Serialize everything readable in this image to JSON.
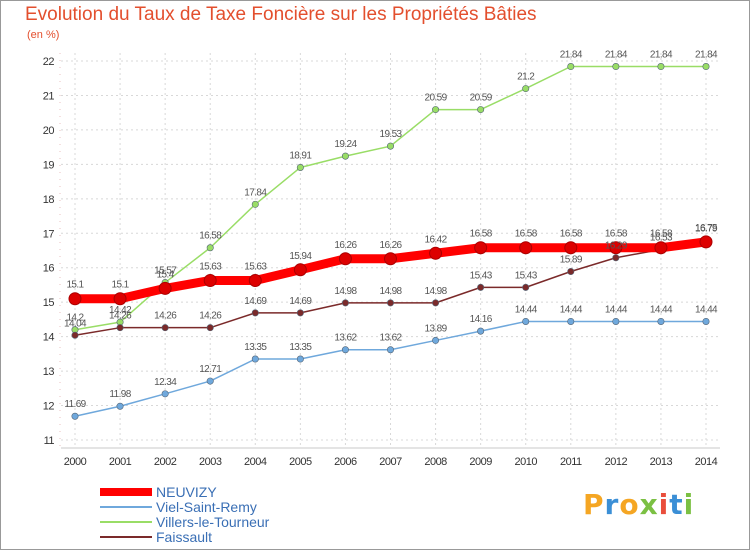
{
  "chart_data": {
    "type": "line",
    "title": "Evolution du Taux de Taxe Foncière sur les Propriétés Bâties",
    "unit_label": "(en %)",
    "xlabel": "",
    "ylabel": "(en %)",
    "categories": [
      "2000",
      "2001",
      "2002",
      "2003",
      "2004",
      "2005",
      "2006",
      "2007",
      "2008",
      "2009",
      "2010",
      "2011",
      "2012",
      "2013",
      "2014"
    ],
    "ylim": [
      11,
      22
    ],
    "yticks": [
      "11",
      "12",
      "13",
      "14",
      "15",
      "16",
      "17",
      "18",
      "19",
      "20",
      "21",
      "22"
    ],
    "grid": true,
    "legend_position": "bottom-left",
    "series": [
      {
        "name": "NEUVIZY",
        "color": "#ff0000",
        "values": [
          15.1,
          15.1,
          15.4,
          15.63,
          15.63,
          15.94,
          16.26,
          16.26,
          16.42,
          16.58,
          16.58,
          16.58,
          16.58,
          16.58,
          16.75
        ],
        "labels": [
          "15.1",
          "15.1",
          "15.4",
          "15.63",
          "15.63",
          "15.94",
          "16.26",
          "16.26",
          "16.42",
          "16.58",
          "16.58",
          "16.58",
          "16.58",
          "16.58",
          "16.75"
        ]
      },
      {
        "name": "Viel-Saint-Remy",
        "color": "#6fa8dc",
        "values": [
          11.69,
          11.98,
          12.34,
          12.71,
          13.35,
          13.35,
          13.62,
          13.62,
          13.89,
          14.16,
          14.44,
          14.44,
          14.44,
          14.44,
          14.44
        ],
        "labels": [
          "11.69",
          "11.98",
          "12.34",
          "12.71",
          "13.35",
          "13.35",
          "13.62",
          "13.62",
          "13.89",
          "14.16",
          "14.44",
          "14.44",
          "14.44",
          "14.44",
          "14.44"
        ]
      },
      {
        "name": "Villers-le-Tourneur",
        "color": "#99dd66",
        "values": [
          14.2,
          14.42,
          15.57,
          16.58,
          17.84,
          18.91,
          19.24,
          19.53,
          20.59,
          20.59,
          21.2,
          21.84,
          21.84,
          21.84,
          21.84
        ],
        "labels": [
          "14.2",
          "14.42",
          "15.57",
          "16.58",
          "17.84",
          "18.91",
          "19.24",
          "19.53",
          "20.59",
          "20.59",
          "21.2",
          "21.84",
          "21.84",
          "21.84",
          "21.84"
        ]
      },
      {
        "name": "Faissault",
        "color": "#7b2a2a",
        "values": [
          14.04,
          14.26,
          14.26,
          14.26,
          14.69,
          14.69,
          14.98,
          14.98,
          14.98,
          15.43,
          15.43,
          15.89,
          16.29,
          16.53,
          16.79
        ],
        "labels": [
          "14.04",
          "14.26",
          "14.26",
          "14.26",
          "14.69",
          "14.69",
          "14.98",
          "14.98",
          "14.98",
          "15.43",
          "15.43",
          "15.89",
          "16.29",
          "16.53",
          "16.79"
        ]
      }
    ]
  },
  "branding": {
    "logo_letters": [
      "P",
      "r",
      "o",
      "x",
      "i",
      "t",
      "i"
    ],
    "logo_colors": [
      "#f5a623",
      "#3b8fd6",
      "#f5a623",
      "#7bc043",
      "#e94e3c",
      "#3b8fd6",
      "#7bc043"
    ]
  }
}
